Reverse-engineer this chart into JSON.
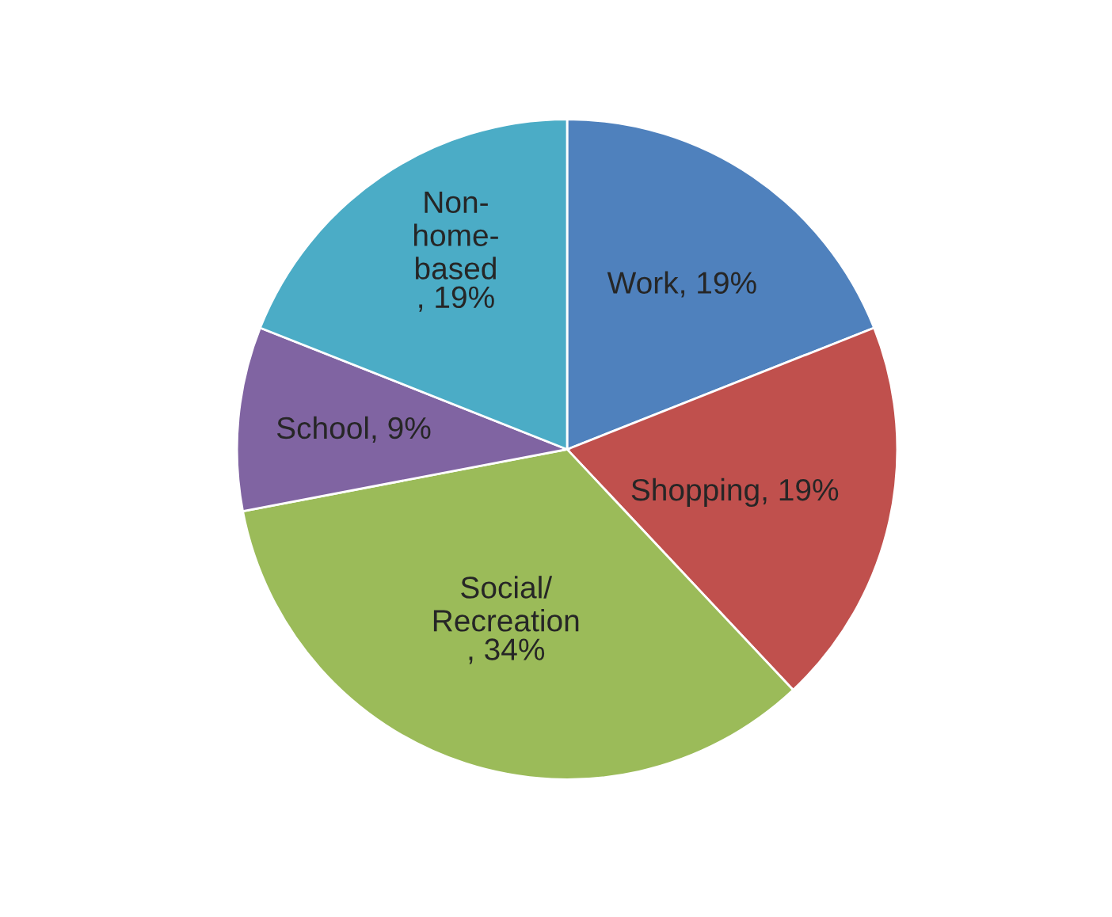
{
  "chart_data": {
    "type": "pie",
    "categories": [
      "Work",
      "Shopping",
      "Social/Recreation",
      "School",
      "Non-home-based"
    ],
    "values": [
      19,
      19,
      34,
      9,
      19
    ],
    "colors": [
      "#4f81bd",
      "#c0504d",
      "#9bbb59",
      "#8064a2",
      "#4bacc6"
    ],
    "value_labels": [
      ", 19%",
      ", 19%",
      ", 34%",
      ", 9%",
      ", 19%"
    ],
    "legend": false
  }
}
